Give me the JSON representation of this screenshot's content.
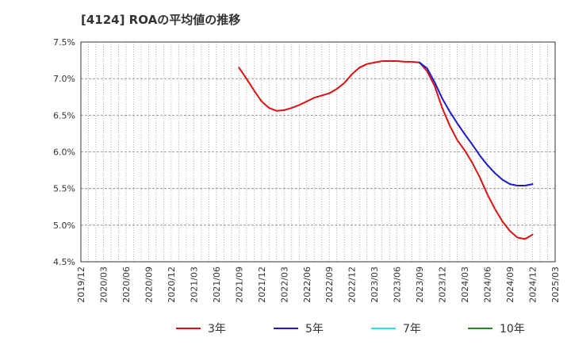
{
  "chart_data": {
    "type": "line",
    "title": "[4124]  ROAの平均値の推移",
    "xlabel": "",
    "ylabel": "",
    "ylim": [
      4.5,
      7.5
    ],
    "xlim": [
      "2019/12",
      "2025/03"
    ],
    "grid": true,
    "legend_position": "bottom",
    "y_ticks": [
      "4.5%",
      "5.0%",
      "5.5%",
      "6.0%",
      "6.5%",
      "7.0%",
      "7.5%"
    ],
    "y_tick_values": [
      4.5,
      5.0,
      5.5,
      6.0,
      6.5,
      7.0,
      7.5
    ],
    "x_ticks": [
      "2019/12",
      "2020/03",
      "2020/06",
      "2020/09",
      "2020/12",
      "2021/03",
      "2021/06",
      "2021/09",
      "2021/12",
      "2022/03",
      "2022/06",
      "2022/09",
      "2022/12",
      "2023/03",
      "2023/06",
      "2023/09",
      "2023/12",
      "2024/03",
      "2024/06",
      "2024/09",
      "2024/12",
      "2025/03"
    ],
    "series": [
      {
        "name": "3年",
        "color": "#dd1111",
        "points": [
          [
            "2021/09",
            7.15
          ],
          [
            "2021/10",
            7.0
          ],
          [
            "2021/11",
            6.84
          ],
          [
            "2021/12",
            6.69
          ],
          [
            "2022/01",
            6.6
          ],
          [
            "2022/02",
            6.56
          ],
          [
            "2022/03",
            6.57
          ],
          [
            "2022/04",
            6.6
          ],
          [
            "2022/05",
            6.64
          ],
          [
            "2022/06",
            6.69
          ],
          [
            "2022/07",
            6.74
          ],
          [
            "2022/08",
            6.77
          ],
          [
            "2022/09",
            6.8
          ],
          [
            "2022/10",
            6.86
          ],
          [
            "2022/11",
            6.94
          ],
          [
            "2022/12",
            7.06
          ],
          [
            "2023/01",
            7.15
          ],
          [
            "2023/02",
            7.2
          ],
          [
            "2023/03",
            7.22
          ],
          [
            "2023/04",
            7.24
          ],
          [
            "2023/05",
            7.24
          ],
          [
            "2023/06",
            7.24
          ],
          [
            "2023/07",
            7.23
          ],
          [
            "2023/08",
            7.23
          ],
          [
            "2023/09",
            7.22
          ],
          [
            "2023/10",
            7.1
          ],
          [
            "2023/11",
            6.9
          ],
          [
            "2023/12",
            6.6
          ],
          [
            "2024/01",
            6.36
          ],
          [
            "2024/02",
            6.16
          ],
          [
            "2024/03",
            6.02
          ],
          [
            "2024/04",
            5.85
          ],
          [
            "2024/05",
            5.65
          ],
          [
            "2024/06",
            5.42
          ],
          [
            "2024/07",
            5.22
          ],
          [
            "2024/08",
            5.05
          ],
          [
            "2024/09",
            4.92
          ],
          [
            "2024/10",
            4.83
          ],
          [
            "2024/11",
            4.81
          ],
          [
            "2024/12",
            4.87
          ]
        ]
      },
      {
        "name": "5年",
        "color": "#1a1acc",
        "points": [
          [
            "2023/09",
            7.22
          ],
          [
            "2023/10",
            7.14
          ],
          [
            "2023/11",
            6.95
          ],
          [
            "2023/12",
            6.73
          ],
          [
            "2024/01",
            6.55
          ],
          [
            "2024/02",
            6.39
          ],
          [
            "2024/03",
            6.24
          ],
          [
            "2024/04",
            6.1
          ],
          [
            "2024/05",
            5.95
          ],
          [
            "2024/06",
            5.82
          ],
          [
            "2024/07",
            5.71
          ],
          [
            "2024/08",
            5.62
          ],
          [
            "2024/09",
            5.56
          ],
          [
            "2024/10",
            5.54
          ],
          [
            "2024/11",
            5.54
          ],
          [
            "2024/12",
            5.56
          ]
        ]
      },
      {
        "name": "7年",
        "color": "#33dddd",
        "points": []
      },
      {
        "name": "10年",
        "color": "#228822",
        "points": []
      }
    ]
  }
}
